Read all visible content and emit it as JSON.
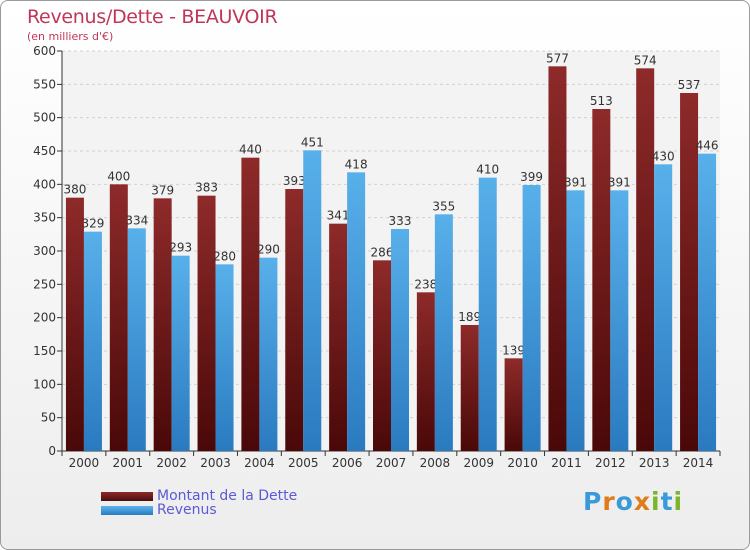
{
  "chart_data": {
    "type": "bar",
    "title": "Revenus/Dette - BEAUVOIR",
    "subtitle": "(en milliers d'€)",
    "categories": [
      "2000",
      "2001",
      "2002",
      "2003",
      "2004",
      "2005",
      "2006",
      "2007",
      "2008",
      "2009",
      "2010",
      "2011",
      "2012",
      "2013",
      "2014"
    ],
    "series": [
      {
        "name": "Montant de la Dette",
        "color": "#7a2020",
        "values": [
          380,
          400,
          379,
          383,
          440,
          393,
          341,
          286,
          238,
          189,
          139,
          577,
          513,
          574,
          537
        ]
      },
      {
        "name": "Revenus",
        "color": "#4aa3e0",
        "values": [
          329,
          334,
          293,
          280,
          290,
          451,
          418,
          333,
          355,
          410,
          399,
          391,
          391,
          430,
          446
        ]
      }
    ],
    "ylim": [
      0,
      600
    ],
    "yticks": [
      0,
      50,
      100,
      150,
      200,
      250,
      300,
      350,
      400,
      450,
      500,
      550,
      600
    ],
    "grid": true,
    "legend_position": "bottom-left"
  },
  "logo": {
    "text": "Proxiti",
    "letters": [
      "P",
      "r",
      "o",
      "x",
      "i",
      "t",
      "i"
    ],
    "colors": [
      "#3a9ad9",
      "#e07b1a",
      "#3a9ad9",
      "#e07b1a",
      "#7ab52a",
      "#3a9ad9",
      "#7ab52a"
    ]
  }
}
